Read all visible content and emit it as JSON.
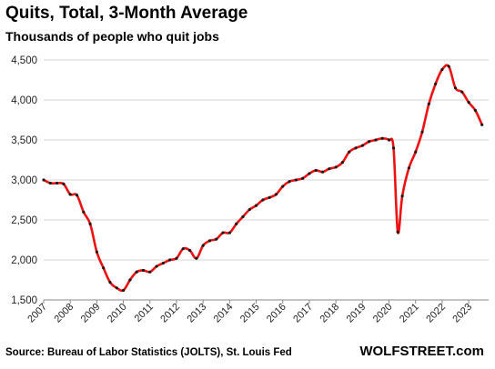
{
  "title": "Quits, Total, 3-Month Average",
  "subtitle": "Thousands of people who quit jobs",
  "source": "Source: Bureau of Labor Statistics (JOLTS), St. Louis Fed",
  "brand": "WOLFSTREET.com",
  "colors": {
    "line": "#ee1111",
    "marker": "#1a1a1a",
    "grid": "#d4d4d4",
    "axis": "#888888"
  },
  "chart_data": {
    "type": "line",
    "title": "Quits, Total, 3-Month Average",
    "subtitle": "Thousands of people who quit jobs",
    "xlabel": "",
    "ylabel": "",
    "xlim": [
      2007,
      2023.75
    ],
    "ylim": [
      1500,
      4500
    ],
    "yticks": [
      1500,
      2000,
      2500,
      3000,
      3500,
      4000,
      4500
    ],
    "ytick_labels": [
      "1,500",
      "2,000",
      "2,500",
      "3,000",
      "3,500",
      "4,000",
      "4,500"
    ],
    "xticks": [
      2007,
      2008,
      2009,
      2010,
      2011,
      2012,
      2013,
      2014,
      2015,
      2016,
      2017,
      2018,
      2019,
      2020,
      2021,
      2022,
      2023
    ],
    "xtick_labels": [
      "2007",
      "2008",
      "2009",
      "2010",
      "2011",
      "2012",
      "2013",
      "2014",
      "2015",
      "2016",
      "2017",
      "2018",
      "2019",
      "2020",
      "2021",
      "2022",
      "2023"
    ],
    "grid": "horizontal",
    "legend": "none",
    "series": [
      {
        "x": [
          2007.0,
          2007.25,
          2007.5,
          2007.75,
          2008.0,
          2008.25,
          2008.5,
          2008.75,
          2009.0,
          2009.25,
          2009.5,
          2009.75,
          2010.0,
          2010.25,
          2010.5,
          2010.75,
          2011.0,
          2011.25,
          2011.5,
          2011.75,
          2012.0,
          2012.25,
          2012.5,
          2012.75,
          2013.0,
          2013.25,
          2013.5,
          2013.75,
          2014.0,
          2014.25,
          2014.5,
          2014.75,
          2015.0,
          2015.25,
          2015.5,
          2015.75,
          2016.0,
          2016.25,
          2016.5,
          2016.75,
          2017.0,
          2017.25,
          2017.5,
          2017.75,
          2018.0,
          2018.25,
          2018.5,
          2018.75,
          2019.0,
          2019.25,
          2019.5,
          2019.75,
          2020.0,
          2020.17,
          2020.33,
          2020.5,
          2020.75,
          2021.0,
          2021.25,
          2021.5,
          2021.75,
          2022.0,
          2022.25,
          2022.5,
          2022.75,
          2023.0,
          2023.25,
          2023.5
        ],
        "y": [
          3000,
          2960,
          2960,
          2950,
          2820,
          2810,
          2600,
          2450,
          2100,
          1900,
          1720,
          1650,
          1620,
          1750,
          1850,
          1870,
          1850,
          1920,
          1960,
          2000,
          2020,
          2140,
          2120,
          2020,
          2180,
          2240,
          2260,
          2340,
          2340,
          2450,
          2540,
          2630,
          2680,
          2750,
          2780,
          2820,
          2920,
          2980,
          3000,
          3020,
          3080,
          3120,
          3100,
          3140,
          3160,
          3220,
          3350,
          3400,
          3430,
          3480,
          3500,
          3520,
          3500,
          3400,
          2350,
          2800,
          3150,
          3350,
          3600,
          3950,
          4200,
          4380,
          4420,
          4150,
          4100,
          3970,
          3870,
          3690
        ]
      }
    ]
  }
}
